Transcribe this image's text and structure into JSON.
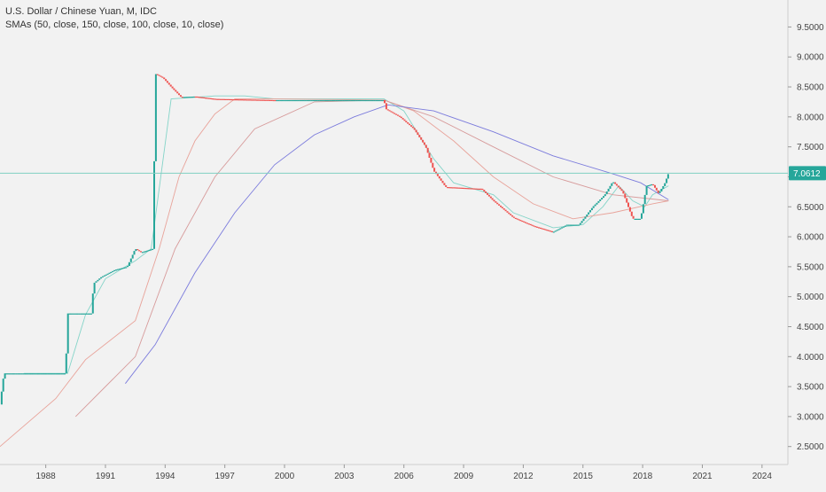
{
  "header": {
    "symbol_line": "U.S. Dollar / Chinese Yuan, M, IDC",
    "indicator_line": "SMAs (50, close, 150, close, 100, close, 10, close)"
  },
  "colors": {
    "background": "#f2f2f2",
    "axis": "#cfcfcf",
    "up": "#26a69a",
    "down": "#ef5350",
    "sma50": "#e8a39a",
    "sma150": "#7b7bdc",
    "sma100": "#d79b9b",
    "sma10": "#84d4c8",
    "price_line": "#7fcfc2",
    "price_label_bg": "#26a69a"
  },
  "chart_data": {
    "type": "line",
    "y_axis_side": "right",
    "ylim": [
      2.2,
      9.95
    ],
    "xlim": [
      1986.2,
      2025.8
    ],
    "x_ticks": [
      "1988",
      "1991",
      "1994",
      "1997",
      "2000",
      "2003",
      "2006",
      "2009",
      "2012",
      "2015",
      "2018",
      "2021",
      "2024"
    ],
    "y_ticks": [
      "9.5000",
      "9.0000",
      "8.5000",
      "8.0000",
      "7.5000",
      "7.0000",
      "6.5000",
      "6.0000",
      "5.5000",
      "5.0000",
      "4.5000",
      "4.0000",
      "3.5000",
      "3.0000",
      "2.5000"
    ],
    "last_price": 7.0612,
    "last_price_label": "7.0612",
    "series": [
      {
        "role": "price",
        "values": [
          [
            1986.2,
            3.2
          ],
          [
            1986.4,
            3.72
          ],
          [
            1989.5,
            3.72
          ],
          [
            1989.6,
            4.72
          ],
          [
            1990.8,
            4.72
          ],
          [
            1990.9,
            5.22
          ],
          [
            1991.3,
            5.33
          ],
          [
            1992.0,
            5.45
          ],
          [
            1992.6,
            5.5
          ],
          [
            1993.0,
            5.8
          ],
          [
            1993.3,
            5.74
          ],
          [
            1993.9,
            5.8
          ],
          [
            1994.0,
            8.72
          ],
          [
            1994.4,
            8.65
          ],
          [
            1994.8,
            8.5
          ],
          [
            1995.3,
            8.33
          ],
          [
            1996.0,
            8.34
          ],
          [
            1997.0,
            8.3
          ],
          [
            2000.0,
            8.28
          ],
          [
            2003.0,
            8.28
          ],
          [
            2005.5,
            8.28
          ],
          [
            2005.6,
            8.13
          ],
          [
            2006.3,
            8.0
          ],
          [
            2007.0,
            7.8
          ],
          [
            2007.6,
            7.5
          ],
          [
            2008.0,
            7.1
          ],
          [
            2008.6,
            6.83
          ],
          [
            2010.4,
            6.8
          ],
          [
            2011.0,
            6.6
          ],
          [
            2012.0,
            6.32
          ],
          [
            2013.0,
            6.18
          ],
          [
            2014.0,
            6.08
          ],
          [
            2014.7,
            6.2
          ],
          [
            2015.3,
            6.2
          ],
          [
            2016.0,
            6.5
          ],
          [
            2016.6,
            6.7
          ],
          [
            2017.0,
            6.92
          ],
          [
            2017.5,
            6.75
          ],
          [
            2018.0,
            6.3
          ],
          [
            2018.4,
            6.3
          ],
          [
            2018.7,
            6.85
          ],
          [
            2019.0,
            6.88
          ],
          [
            2019.3,
            6.72
          ],
          [
            2019.6,
            6.88
          ],
          [
            2019.8,
            7.06
          ]
        ]
      },
      {
        "name": "SMA 10",
        "values": [
          [
            1987.4,
            3.72
          ],
          [
            1989.6,
            3.72
          ],
          [
            1990.5,
            4.7
          ],
          [
            1991.5,
            5.3
          ],
          [
            1993.0,
            5.6
          ],
          [
            1993.8,
            5.8
          ],
          [
            1994.8,
            8.3
          ],
          [
            1997.0,
            8.35
          ],
          [
            1998.5,
            8.35
          ],
          [
            2000.0,
            8.3
          ],
          [
            2005.5,
            8.3
          ],
          [
            2006.5,
            8.1
          ],
          [
            2008.0,
            7.3
          ],
          [
            2009.0,
            6.9
          ],
          [
            2011.0,
            6.7
          ],
          [
            2012.0,
            6.4
          ],
          [
            2014.0,
            6.15
          ],
          [
            2015.5,
            6.2
          ],
          [
            2016.5,
            6.5
          ],
          [
            2017.3,
            6.85
          ],
          [
            2018.0,
            6.6
          ],
          [
            2018.6,
            6.5
          ],
          [
            2019.0,
            6.7
          ],
          [
            2019.8,
            6.85
          ]
        ]
      },
      {
        "name": "SMA 50",
        "values": [
          [
            1986.2,
            2.5
          ],
          [
            1989.0,
            3.3
          ],
          [
            1990.5,
            3.95
          ],
          [
            1993.0,
            4.6
          ],
          [
            1994.2,
            5.8
          ],
          [
            1995.2,
            7.0
          ],
          [
            1996.0,
            7.6
          ],
          [
            1997.0,
            8.05
          ],
          [
            1998.0,
            8.3
          ],
          [
            2000.0,
            8.3
          ],
          [
            2005.5,
            8.28
          ],
          [
            2007.0,
            8.1
          ],
          [
            2009.0,
            7.6
          ],
          [
            2011.0,
            7.0
          ],
          [
            2013.0,
            6.55
          ],
          [
            2015.0,
            6.3
          ],
          [
            2017.0,
            6.4
          ],
          [
            2019.0,
            6.55
          ],
          [
            2019.8,
            6.6
          ]
        ]
      },
      {
        "name": "SMA 100",
        "values": [
          [
            1990.0,
            3.0
          ],
          [
            1993.0,
            4.0
          ],
          [
            1995.0,
            5.8
          ],
          [
            1997.0,
            7.0
          ],
          [
            1999.0,
            7.8
          ],
          [
            2002.0,
            8.25
          ],
          [
            2005.5,
            8.28
          ],
          [
            2008.0,
            8.0
          ],
          [
            2011.0,
            7.5
          ],
          [
            2014.0,
            7.0
          ],
          [
            2017.0,
            6.7
          ],
          [
            2019.8,
            6.6
          ]
        ]
      },
      {
        "name": "SMA 150",
        "values": [
          [
            1992.5,
            3.55
          ],
          [
            1994.0,
            4.2
          ],
          [
            1996.0,
            5.4
          ],
          [
            1998.0,
            6.4
          ],
          [
            2000.0,
            7.2
          ],
          [
            2002.0,
            7.7
          ],
          [
            2004.0,
            8.0
          ],
          [
            2005.7,
            8.2
          ],
          [
            2008.0,
            8.1
          ],
          [
            2011.0,
            7.75
          ],
          [
            2014.0,
            7.35
          ],
          [
            2017.0,
            7.05
          ],
          [
            2018.4,
            6.9
          ],
          [
            2019.8,
            6.62
          ]
        ]
      }
    ]
  }
}
